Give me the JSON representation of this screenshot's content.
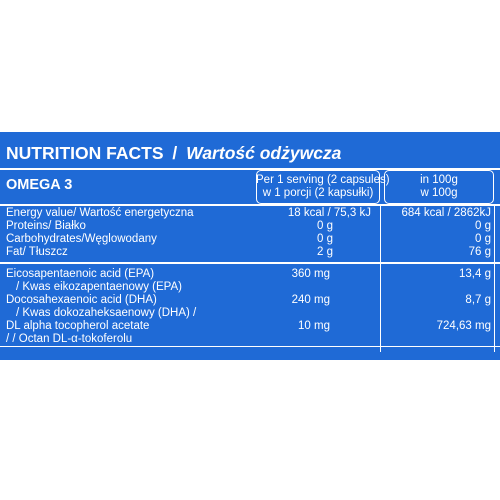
{
  "title": {
    "main": "NUTRITION FACTS",
    "sep": "/",
    "sub": "Wartość odżywcza"
  },
  "product": "OMEGA 3",
  "header": {
    "serving_en": "Per 1 serving (2 capsules)",
    "serving_pl": "w 1 porcji (2 kapsułki)",
    "per100_en": "in 100g",
    "per100_pl": "w 100g"
  },
  "rows": [
    {
      "label": "Energy value/ Wartość energetyczna",
      "serving": "18 kcal / 75,3 kJ",
      "per100": "684 kcal / 2862kJ"
    },
    {
      "label": "Proteins/ Białko",
      "serving": "0 g",
      "per100": "0 g"
    },
    {
      "label": "Carbohydrates/Węglowodany",
      "serving": "0 g",
      "per100": "0 g"
    },
    {
      "label": "Fat/ Tłuszcz",
      "serving": "2 g",
      "per100": "76 g"
    }
  ],
  "rows2": [
    {
      "label": "Eicosapentaenoic acid (EPA)",
      "label2": "/ Kwas eikozapentaenowy (EPA)",
      "serving": "360 mg",
      "per100": "13,4 g"
    },
    {
      "label": "Docosahexaenoic acid (DHA)",
      "label2": "/ Kwas dokozaheksaenowy (DHA) /",
      "serving": "240 mg",
      "per100": "8,7 g"
    },
    {
      "label": "DL alpha tocopherol acetate",
      "label2": "/ / Octan DL-α-tokoferolu",
      "serving": "10 mg",
      "per100": "724,63 mg"
    }
  ]
}
